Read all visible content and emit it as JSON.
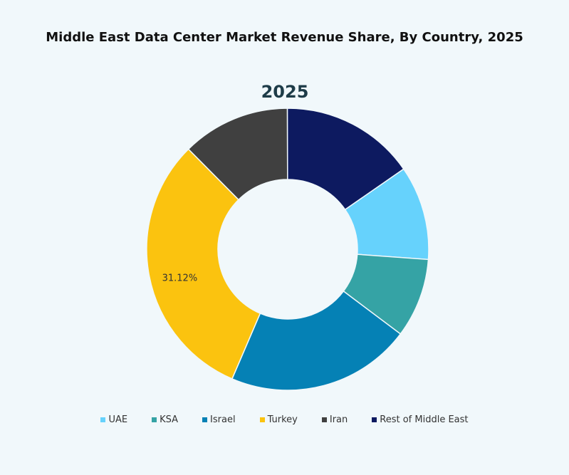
{
  "chart_data": {
    "type": "pie",
    "title": "Middle East Data Center Market Revenue Share, By Country, 2025",
    "subtitle": "2025",
    "donut": true,
    "legend_position": "bottom",
    "categories": [
      "UAE",
      "KSA",
      "Israel",
      "Turkey",
      "Iran",
      "Rest of Middle East"
    ],
    "values": [
      10.8,
      9.1,
      21.2,
      31.12,
      12.4,
      15.4
    ],
    "colors": [
      "#66d2fc",
      "#35a3a5",
      "#0581b5",
      "#fbc30f",
      "#404040",
      "#0d1a60"
    ],
    "data_labels": [
      "",
      "",
      "",
      "31.12%",
      "",
      ""
    ]
  }
}
